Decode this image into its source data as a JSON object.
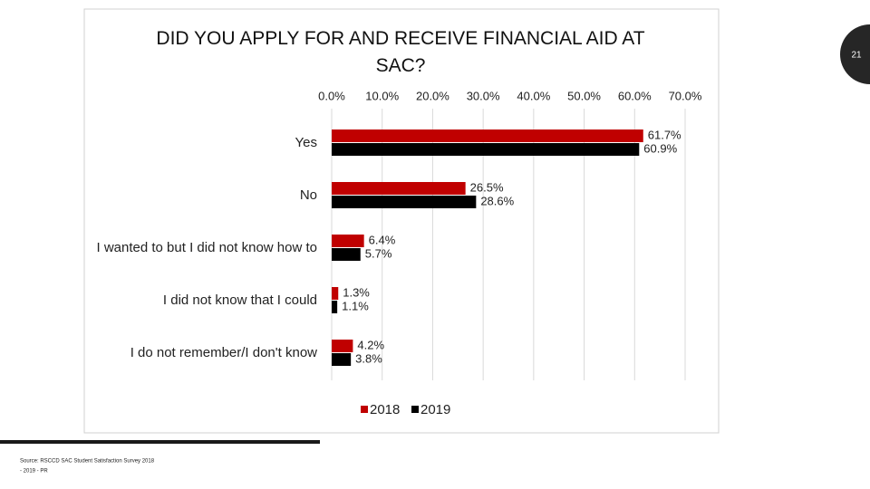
{
  "chart_data": {
    "type": "bar",
    "title": "DID YOU APPLY FOR AND RECEIVE FINANCIAL AID AT SAC?",
    "categories": [
      "Yes",
      "No",
      "I wanted to but I did not know how to",
      "I did not know that I could",
      "I do not remember/I don't know"
    ],
    "series": [
      {
        "name": "2018",
        "color": "#c00000",
        "values": [
          61.7,
          26.5,
          6.4,
          1.3,
          4.2
        ],
        "value_labels": [
          "61.7%",
          "26.5%",
          "6.4%",
          "1.3%",
          "4.2%"
        ]
      },
      {
        "name": "2019",
        "color": "#000000",
        "values": [
          60.9,
          28.6,
          5.7,
          1.1,
          3.8
        ],
        "value_labels": [
          "60.9%",
          "28.6%",
          "5.7%",
          "1.1%",
          "3.8%"
        ]
      }
    ],
    "xlim": [
      0,
      70
    ],
    "xticks": [
      {
        "value": 0,
        "label": "0.0%"
      },
      {
        "value": 10,
        "label": "10.0%"
      },
      {
        "value": 20,
        "label": "20.0%"
      },
      {
        "value": 30,
        "label": "30.0%"
      },
      {
        "value": 40,
        "label": "40.0%"
      },
      {
        "value": 50,
        "label": "50.0%"
      },
      {
        "value": 60,
        "label": "60.0%"
      },
      {
        "value": 70,
        "label": "70.0%"
      }
    ],
    "grid": true,
    "legend": "bottom"
  },
  "slide": {
    "number": "21",
    "source": [
      "Source: RSCCD SAC Student Satisfaction Survey 2018",
      "- 2019 - PR"
    ]
  }
}
